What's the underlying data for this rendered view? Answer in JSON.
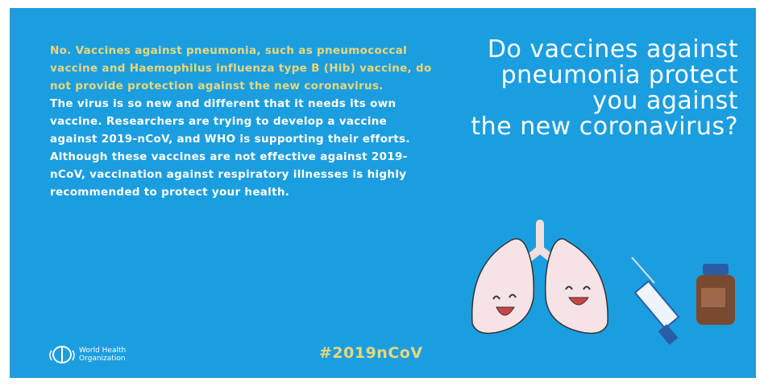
{
  "card": {
    "answer": "No. Vaccines against pneumonia, such as pneumococcal vaccine and Haemophilus influenza type B (Hib) vaccine, do not provide protection against the new coronavirus.",
    "paragraphs": [
      "The virus is so new and different that it needs its own vaccine. Researchers are trying to develop a vaccine against 2019-nCoV, and WHO is supporting their efforts.",
      "Although these vaccines are not effective against 2019-nCoV, vaccination against respiratory illnesses is highly recommended to protect your health."
    ],
    "title_lines": [
      "Do vaccines against",
      "pneumonia protect",
      "you against",
      "the new coronavirus?"
    ],
    "hashtag": "#2019nCoV",
    "logo_lines": [
      "World Health",
      "Organization"
    ]
  }
}
